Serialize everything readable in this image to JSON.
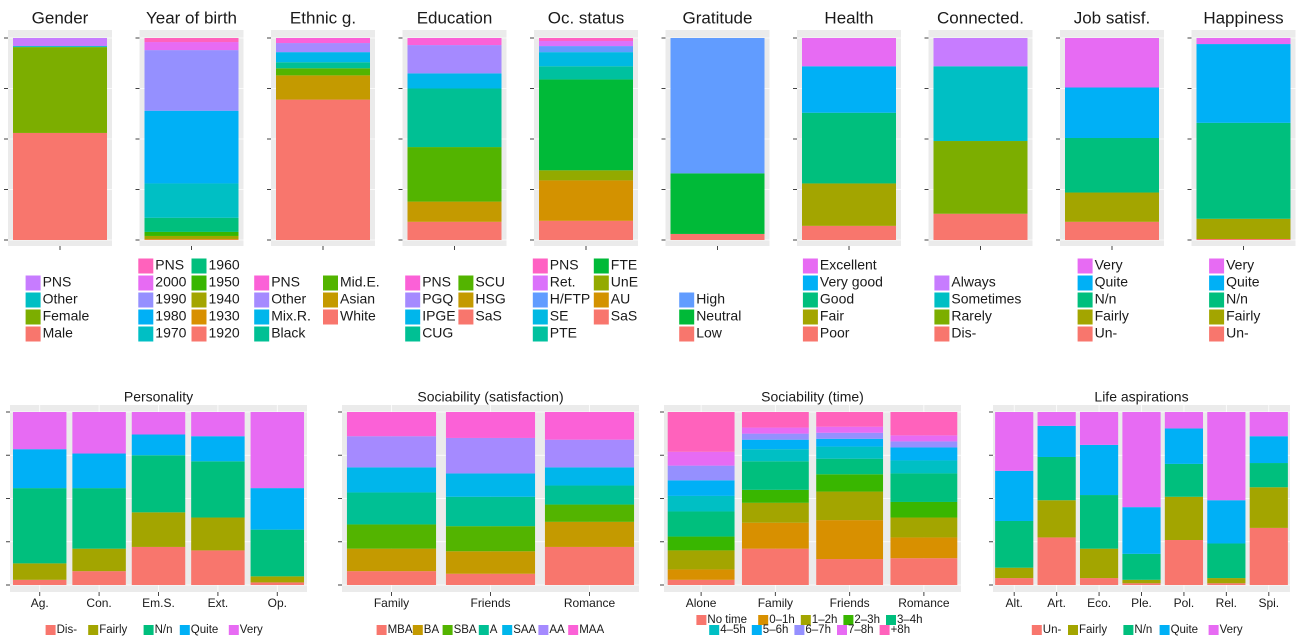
{
  "chart_data": [
    {
      "type": "stacked_bar",
      "title": "Gender",
      "categories": [
        null
      ],
      "ylim": [
        0,
        100
      ],
      "yticks": [
        0,
        25,
        50,
        75,
        100
      ],
      "grid": true,
      "legend_reverse": true,
      "legend_ncol": 1,
      "legend_direction": "vertical",
      "series": [
        {
          "name": "Male",
          "color": "#F8766D",
          "values": [
            53
          ]
        },
        {
          "name": "Female",
          "color": "#7CAE00",
          "values": [
            42.5
          ]
        },
        {
          "name": "Other",
          "color": "#00BFC4",
          "values": [
            0.5
          ]
        },
        {
          "name": "PNS",
          "color": "#C77CFF",
          "values": [
            4
          ]
        }
      ]
    },
    {
      "type": "stacked_bar",
      "title": "Year of birth",
      "categories": [
        null
      ],
      "ylim": [
        0,
        100
      ],
      "yticks": [
        0,
        25,
        50,
        75,
        100
      ],
      "grid": true,
      "legend_reverse": true,
      "legend_ncol": 2,
      "legend_direction": "vertical",
      "series": [
        {
          "name": "1920",
          "color": "#F8766D",
          "values": [
            0.2
          ]
        },
        {
          "name": "1930",
          "color": "#D89000",
          "values": [
            0.3
          ]
        },
        {
          "name": "1940",
          "color": "#A3A500",
          "values": [
            1.5
          ]
        },
        {
          "name": "1950",
          "color": "#39B600",
          "values": [
            2
          ]
        },
        {
          "name": "1960",
          "color": "#00BF7D",
          "values": [
            7
          ]
        },
        {
          "name": "1970",
          "color": "#00BFC4",
          "values": [
            17
          ]
        },
        {
          "name": "1980",
          "color": "#00B0F6",
          "values": [
            36
          ]
        },
        {
          "name": "1990",
          "color": "#9590FF",
          "values": [
            30
          ]
        },
        {
          "name": "2000",
          "color": "#E76BF3",
          "values": [
            4
          ]
        },
        {
          "name": "PNS",
          "color": "#FF62BC",
          "values": [
            2
          ]
        }
      ]
    },
    {
      "type": "stacked_bar",
      "title": "Ethnic g.",
      "categories": [
        null
      ],
      "ylim": [
        0,
        100
      ],
      "yticks": [
        0,
        25,
        50,
        75,
        100
      ],
      "grid": true,
      "legend_reverse": true,
      "legend_ncol": 2,
      "legend_direction": "vertical",
      "series": [
        {
          "name": "White",
          "color": "#F8766D",
          "values": [
            69.5
          ]
        },
        {
          "name": "Asian",
          "color": "#C49A00",
          "values": [
            12
          ]
        },
        {
          "name": "Mid.E.",
          "color": "#53B400",
          "values": [
            3.5
          ]
        },
        {
          "name": "Black",
          "color": "#00C094",
          "values": [
            3
          ]
        },
        {
          "name": "Mix.R.",
          "color": "#00B6EB",
          "values": [
            5
          ]
        },
        {
          "name": "Other",
          "color": "#A58AFF",
          "values": [
            4.5
          ]
        },
        {
          "name": "PNS",
          "color": "#FB61D7",
          "values": [
            2.5
          ]
        }
      ]
    },
    {
      "type": "stacked_bar",
      "title": "Education",
      "categories": [
        null
      ],
      "ylim": [
        0,
        100
      ],
      "yticks": [
        0,
        25,
        50,
        75,
        100
      ],
      "grid": true,
      "legend_reverse": true,
      "legend_ncol": 2,
      "legend_direction": "vertical",
      "series": [
        {
          "name": "SaS",
          "color": "#F8766D",
          "values": [
            9
          ]
        },
        {
          "name": "HSG",
          "color": "#C49A00",
          "values": [
            10
          ]
        },
        {
          "name": "SCU",
          "color": "#53B400",
          "values": [
            27
          ]
        },
        {
          "name": "CUG",
          "color": "#00C094",
          "values": [
            29
          ]
        },
        {
          "name": "IPGE",
          "color": "#00B6EB",
          "values": [
            7.5
          ]
        },
        {
          "name": "PGQ",
          "color": "#A58AFF",
          "values": [
            14
          ]
        },
        {
          "name": "PNS",
          "color": "#FB61D7",
          "values": [
            3.5
          ]
        }
      ]
    },
    {
      "type": "stacked_bar",
      "title": "Oc. status",
      "categories": [
        null
      ],
      "ylim": [
        0,
        100
      ],
      "yticks": [
        0,
        25,
        50,
        75,
        100
      ],
      "grid": true,
      "legend_reverse": true,
      "legend_ncol": 2,
      "legend_direction": "vertical",
      "series": [
        {
          "name": "SaS",
          "color": "#F8766D",
          "values": [
            9.5
          ]
        },
        {
          "name": "AU",
          "color": "#D39200",
          "values": [
            20
          ]
        },
        {
          "name": "UnE",
          "color": "#93AA00",
          "values": [
            5
          ]
        },
        {
          "name": "FTE",
          "color": "#00BA38",
          "values": [
            45
          ]
        },
        {
          "name": "PTE",
          "color": "#00C19F",
          "values": [
            6.5
          ]
        },
        {
          "name": "SE",
          "color": "#00B9E3",
          "values": [
            7
          ]
        },
        {
          "name": "H/FTP",
          "color": "#619CFF",
          "values": [
            3
          ]
        },
        {
          "name": "Ret.",
          "color": "#DB72FB",
          "values": [
            2.5
          ]
        },
        {
          "name": "PNS",
          "color": "#FF61C3",
          "values": [
            1.5
          ]
        }
      ]
    },
    {
      "type": "stacked_bar",
      "title": "Gratitude",
      "categories": [
        null
      ],
      "ylim": [
        0,
        100
      ],
      "yticks": [
        0,
        25,
        50,
        75,
        100
      ],
      "grid": true,
      "legend_reverse": true,
      "legend_ncol": 1,
      "legend_direction": "vertical",
      "series": [
        {
          "name": "Low",
          "color": "#F8766D",
          "values": [
            3
          ]
        },
        {
          "name": "Neutral",
          "color": "#00BA38",
          "values": [
            30
          ]
        },
        {
          "name": "High",
          "color": "#619CFF",
          "values": [
            67
          ]
        }
      ]
    },
    {
      "type": "stacked_bar",
      "title": "Health",
      "categories": [
        null
      ],
      "ylim": [
        0,
        100
      ],
      "yticks": [
        0,
        25,
        50,
        75,
        100
      ],
      "grid": true,
      "legend_reverse": true,
      "legend_ncol": 1,
      "legend_direction": "vertical",
      "series": [
        {
          "name": "Poor",
          "color": "#F8766D",
          "values": [
            7
          ]
        },
        {
          "name": "Fair",
          "color": "#A3A500",
          "values": [
            21
          ]
        },
        {
          "name": "Good",
          "color": "#00BF7D",
          "values": [
            35
          ]
        },
        {
          "name": "Very good",
          "color": "#00B0F6",
          "values": [
            23
          ]
        },
        {
          "name": "Excellent",
          "color": "#E76BF3",
          "values": [
            14
          ]
        }
      ]
    },
    {
      "type": "stacked_bar",
      "title": "Connected.",
      "categories": [
        null
      ],
      "ylim": [
        0,
        100
      ],
      "yticks": [
        0,
        25,
        50,
        75,
        100
      ],
      "grid": true,
      "legend_reverse": true,
      "legend_ncol": 1,
      "legend_direction": "vertical",
      "series": [
        {
          "name": "Dis-",
          "color": "#F8766D",
          "values": [
            13
          ]
        },
        {
          "name": "Rarely",
          "color": "#7CAE00",
          "values": [
            36
          ]
        },
        {
          "name": "Sometimes",
          "color": "#00BFC4",
          "values": [
            37
          ]
        },
        {
          "name": "Always",
          "color": "#C77CFF",
          "values": [
            14
          ]
        }
      ]
    },
    {
      "type": "stacked_bar",
      "title": "Job satisf.",
      "categories": [
        null
      ],
      "ylim": [
        0,
        100
      ],
      "yticks": [
        0,
        25,
        50,
        75,
        100
      ],
      "grid": true,
      "legend_reverse": true,
      "legend_ncol": 1,
      "legend_direction": "vertical",
      "series": [
        {
          "name": "Un-",
          "color": "#F8766D",
          "values": [
            9
          ]
        },
        {
          "name": "Fairly",
          "color": "#A3A500",
          "values": [
            14.5
          ]
        },
        {
          "name": "N/n",
          "color": "#00BF7D",
          "values": [
            27
          ]
        },
        {
          "name": "Quite",
          "color": "#00B0F6",
          "values": [
            25
          ]
        },
        {
          "name": "Very",
          "color": "#E76BF3",
          "values": [
            24.5
          ]
        }
      ]
    },
    {
      "type": "stacked_bar",
      "title": "Happiness",
      "categories": [
        null
      ],
      "ylim": [
        0,
        100
      ],
      "yticks": [
        0,
        25,
        50,
        75,
        100
      ],
      "grid": true,
      "legend_reverse": true,
      "legend_ncol": 1,
      "legend_direction": "vertical",
      "series": [
        {
          "name": "Un-",
          "color": "#F8766D",
          "values": [
            0.5
          ]
        },
        {
          "name": "Fairly",
          "color": "#A3A500",
          "values": [
            10
          ]
        },
        {
          "name": "N/n",
          "color": "#00BF7D",
          "values": [
            47.5
          ]
        },
        {
          "name": "Quite",
          "color": "#00B0F6",
          "values": [
            39
          ]
        },
        {
          "name": "Very",
          "color": "#E76BF3",
          "values": [
            3
          ]
        }
      ]
    },
    {
      "type": "stacked_bar",
      "title": "Personality",
      "categories": [
        "Ag.",
        "Con.",
        "Em.S.",
        "Ext.",
        "Op."
      ],
      "ylim": [
        0,
        100
      ],
      "yticks": [
        0,
        25,
        50,
        75,
        100
      ],
      "grid": true,
      "legend_reverse": false,
      "legend_nrow": 1,
      "legend_direction": "horizontal",
      "series": [
        {
          "name": "Dis-",
          "color": "#F8766D",
          "values": [
            3,
            8,
            22,
            20,
            1.5
          ]
        },
        {
          "name": "Fairly",
          "color": "#A3A500",
          "values": [
            9.5,
            13,
            20,
            19,
            3.5
          ]
        },
        {
          "name": "N/n",
          "color": "#00BF7D",
          "values": [
            43.5,
            35,
            33,
            32.5,
            27
          ]
        },
        {
          "name": "Quite",
          "color": "#00B0F6",
          "values": [
            22.5,
            20,
            12,
            14.5,
            24
          ]
        },
        {
          "name": "Very",
          "color": "#E76BF3",
          "values": [
            21.5,
            24,
            13,
            14,
            44
          ]
        }
      ]
    },
    {
      "type": "stacked_bar",
      "title": "Sociability (satisfaction)",
      "categories": [
        "Family",
        "Friends",
        "Romance"
      ],
      "ylim": [
        0,
        100
      ],
      "yticks": [
        0,
        25,
        50,
        75,
        100
      ],
      "grid": true,
      "legend_reverse": false,
      "legend_nrow": 1,
      "legend_direction": "horizontal",
      "series": [
        {
          "name": "MBA",
          "color": "#F8766D",
          "values": [
            8,
            6.5,
            22
          ]
        },
        {
          "name": "BA",
          "color": "#C49A00",
          "values": [
            13,
            13,
            14.5
          ]
        },
        {
          "name": "SBA",
          "color": "#53B400",
          "values": [
            14,
            14.5,
            10
          ]
        },
        {
          "name": "A",
          "color": "#00C094",
          "values": [
            18.5,
            17,
            11
          ]
        },
        {
          "name": "SAA",
          "color": "#00B6EB",
          "values": [
            14.5,
            13.5,
            10.5
          ]
        },
        {
          "name": "AA",
          "color": "#A58AFF",
          "values": [
            18,
            20.5,
            16
          ]
        },
        {
          "name": "MAA",
          "color": "#FB61D7",
          "values": [
            14,
            15,
            16
          ]
        }
      ]
    },
    {
      "type": "stacked_bar",
      "title": "Sociability (time)",
      "categories": [
        "Alone",
        "Family",
        "Friends",
        "Romance"
      ],
      "ylim": [
        0,
        100
      ],
      "yticks": [
        0,
        25,
        50,
        75,
        100
      ],
      "grid": true,
      "legend_reverse": false,
      "legend_nrow": 2,
      "legend_direction": "horizontal",
      "series": [
        {
          "name": "No time",
          "color": "#F8766D",
          "values": [
            3,
            21,
            15,
            15.5
          ]
        },
        {
          "name": "0–1h",
          "color": "#D89000",
          "values": [
            6,
            15,
            22.5,
            12
          ]
        },
        {
          "name": "1–2h",
          "color": "#A3A500",
          "values": [
            11,
            11.5,
            16.5,
            11.5
          ]
        },
        {
          "name": "2–3h",
          "color": "#39B600",
          "values": [
            8,
            7.5,
            10,
            9
          ]
        },
        {
          "name": "3–4h",
          "color": "#00BF7D",
          "values": [
            14.5,
            16.5,
            9,
            16.5
          ]
        },
        {
          "name": "4–5h",
          "color": "#00BFC4",
          "values": [
            9,
            7,
            7,
            7.5
          ]
        },
        {
          "name": "5–6h",
          "color": "#00B0F6",
          "values": [
            9,
            5.5,
            4.5,
            7.5
          ]
        },
        {
          "name": "6–7h",
          "color": "#9590FF",
          "values": [
            8.5,
            3.5,
            3.5,
            3.5
          ]
        },
        {
          "name": "7–8h",
          "color": "#E76BF3",
          "values": [
            8,
            3.5,
            3.5,
            3.5
          ]
        },
        {
          "name": "+8h",
          "color": "#FF62BC",
          "values": [
            23,
            9,
            8.5,
            13.5
          ]
        }
      ]
    },
    {
      "type": "stacked_bar",
      "title": "Life aspirations",
      "categories": [
        "Alt.",
        "Art.",
        "Eco.",
        "Ple.",
        "Pol.",
        "Rel.",
        "Spi."
      ],
      "ylim": [
        0,
        100
      ],
      "yticks": [
        0,
        25,
        50,
        75,
        100
      ],
      "grid": true,
      "legend_reverse": false,
      "legend_nrow": 1,
      "legend_direction": "horizontal",
      "series": [
        {
          "name": "Un-",
          "color": "#F8766D",
          "values": [
            4,
            27.5,
            4,
            1,
            26,
            1,
            33
          ]
        },
        {
          "name": "Fairly",
          "color": "#A3A500",
          "values": [
            6,
            21.5,
            17,
            2,
            25,
            3,
            23.5
          ]
        },
        {
          "name": "N/n",
          "color": "#00BF7D",
          "values": [
            27,
            25,
            31,
            15,
            19,
            20,
            14
          ]
        },
        {
          "name": "Quite",
          "color": "#00B0F6",
          "values": [
            29,
            18,
            29,
            27,
            20.5,
            25,
            15.5
          ]
        },
        {
          "name": "Very",
          "color": "#E76BF3",
          "values": [
            34,
            8,
            19,
            55,
            9.5,
            51,
            14
          ]
        }
      ]
    }
  ]
}
